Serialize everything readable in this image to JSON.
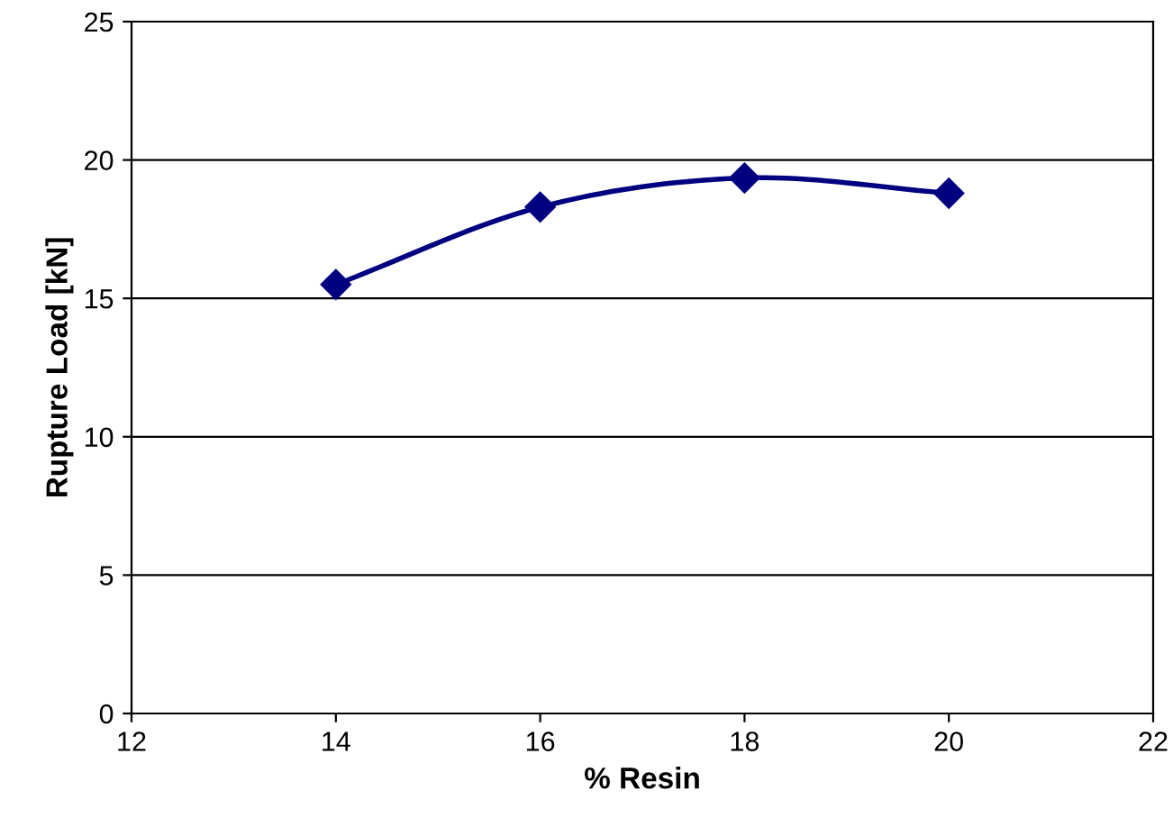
{
  "chart_data": {
    "type": "line",
    "xlabel": "% Resin",
    "ylabel": "Rupture Load [kN]",
    "x": [
      14,
      16,
      18,
      20
    ],
    "series": [
      {
        "color": "#000080",
        "values": [
          15.5,
          18.3,
          19.35,
          18.8
        ]
      }
    ],
    "xlim": [
      12,
      22
    ],
    "xticks": [
      12,
      14,
      16,
      18,
      20,
      22
    ],
    "ylim": [
      0,
      25
    ],
    "yticks": [
      0,
      5,
      10,
      15,
      20,
      25
    ],
    "grid": "y",
    "marker": "diamond",
    "line_style": "solid"
  }
}
